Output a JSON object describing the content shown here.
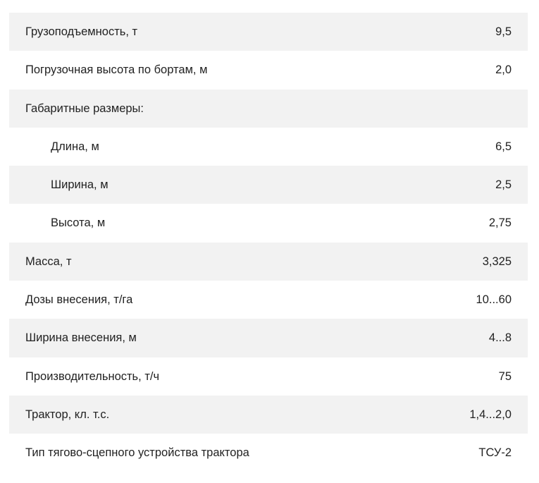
{
  "rows": [
    {
      "label": "Грузоподъемность, т",
      "value": "9,5"
    },
    {
      "label": "Погрузочная высота по бортам, м",
      "value": "2,0"
    },
    {
      "label": "Габаритные размеры:",
      "value": ""
    },
    {
      "label": "Длина, м",
      "value": "6,5"
    },
    {
      "label": "Ширина, м",
      "value": "2,5"
    },
    {
      "label": "Высота, м",
      "value": "2,75"
    },
    {
      "label": "Масса, т",
      "value": "3,325"
    },
    {
      "label": "Дозы внесения, т/га",
      "value": "10...60"
    },
    {
      "label": "Ширина внесения, м",
      "value": "4...8"
    },
    {
      "label": "Производительность, т/ч",
      "value": "75"
    },
    {
      "label": "Трактор, кл. т.с.",
      "value": "1,4...2,0"
    },
    {
      "label": "Тип тягово-сцепного устройства трактора",
      "value": "ТСУ-2"
    }
  ]
}
